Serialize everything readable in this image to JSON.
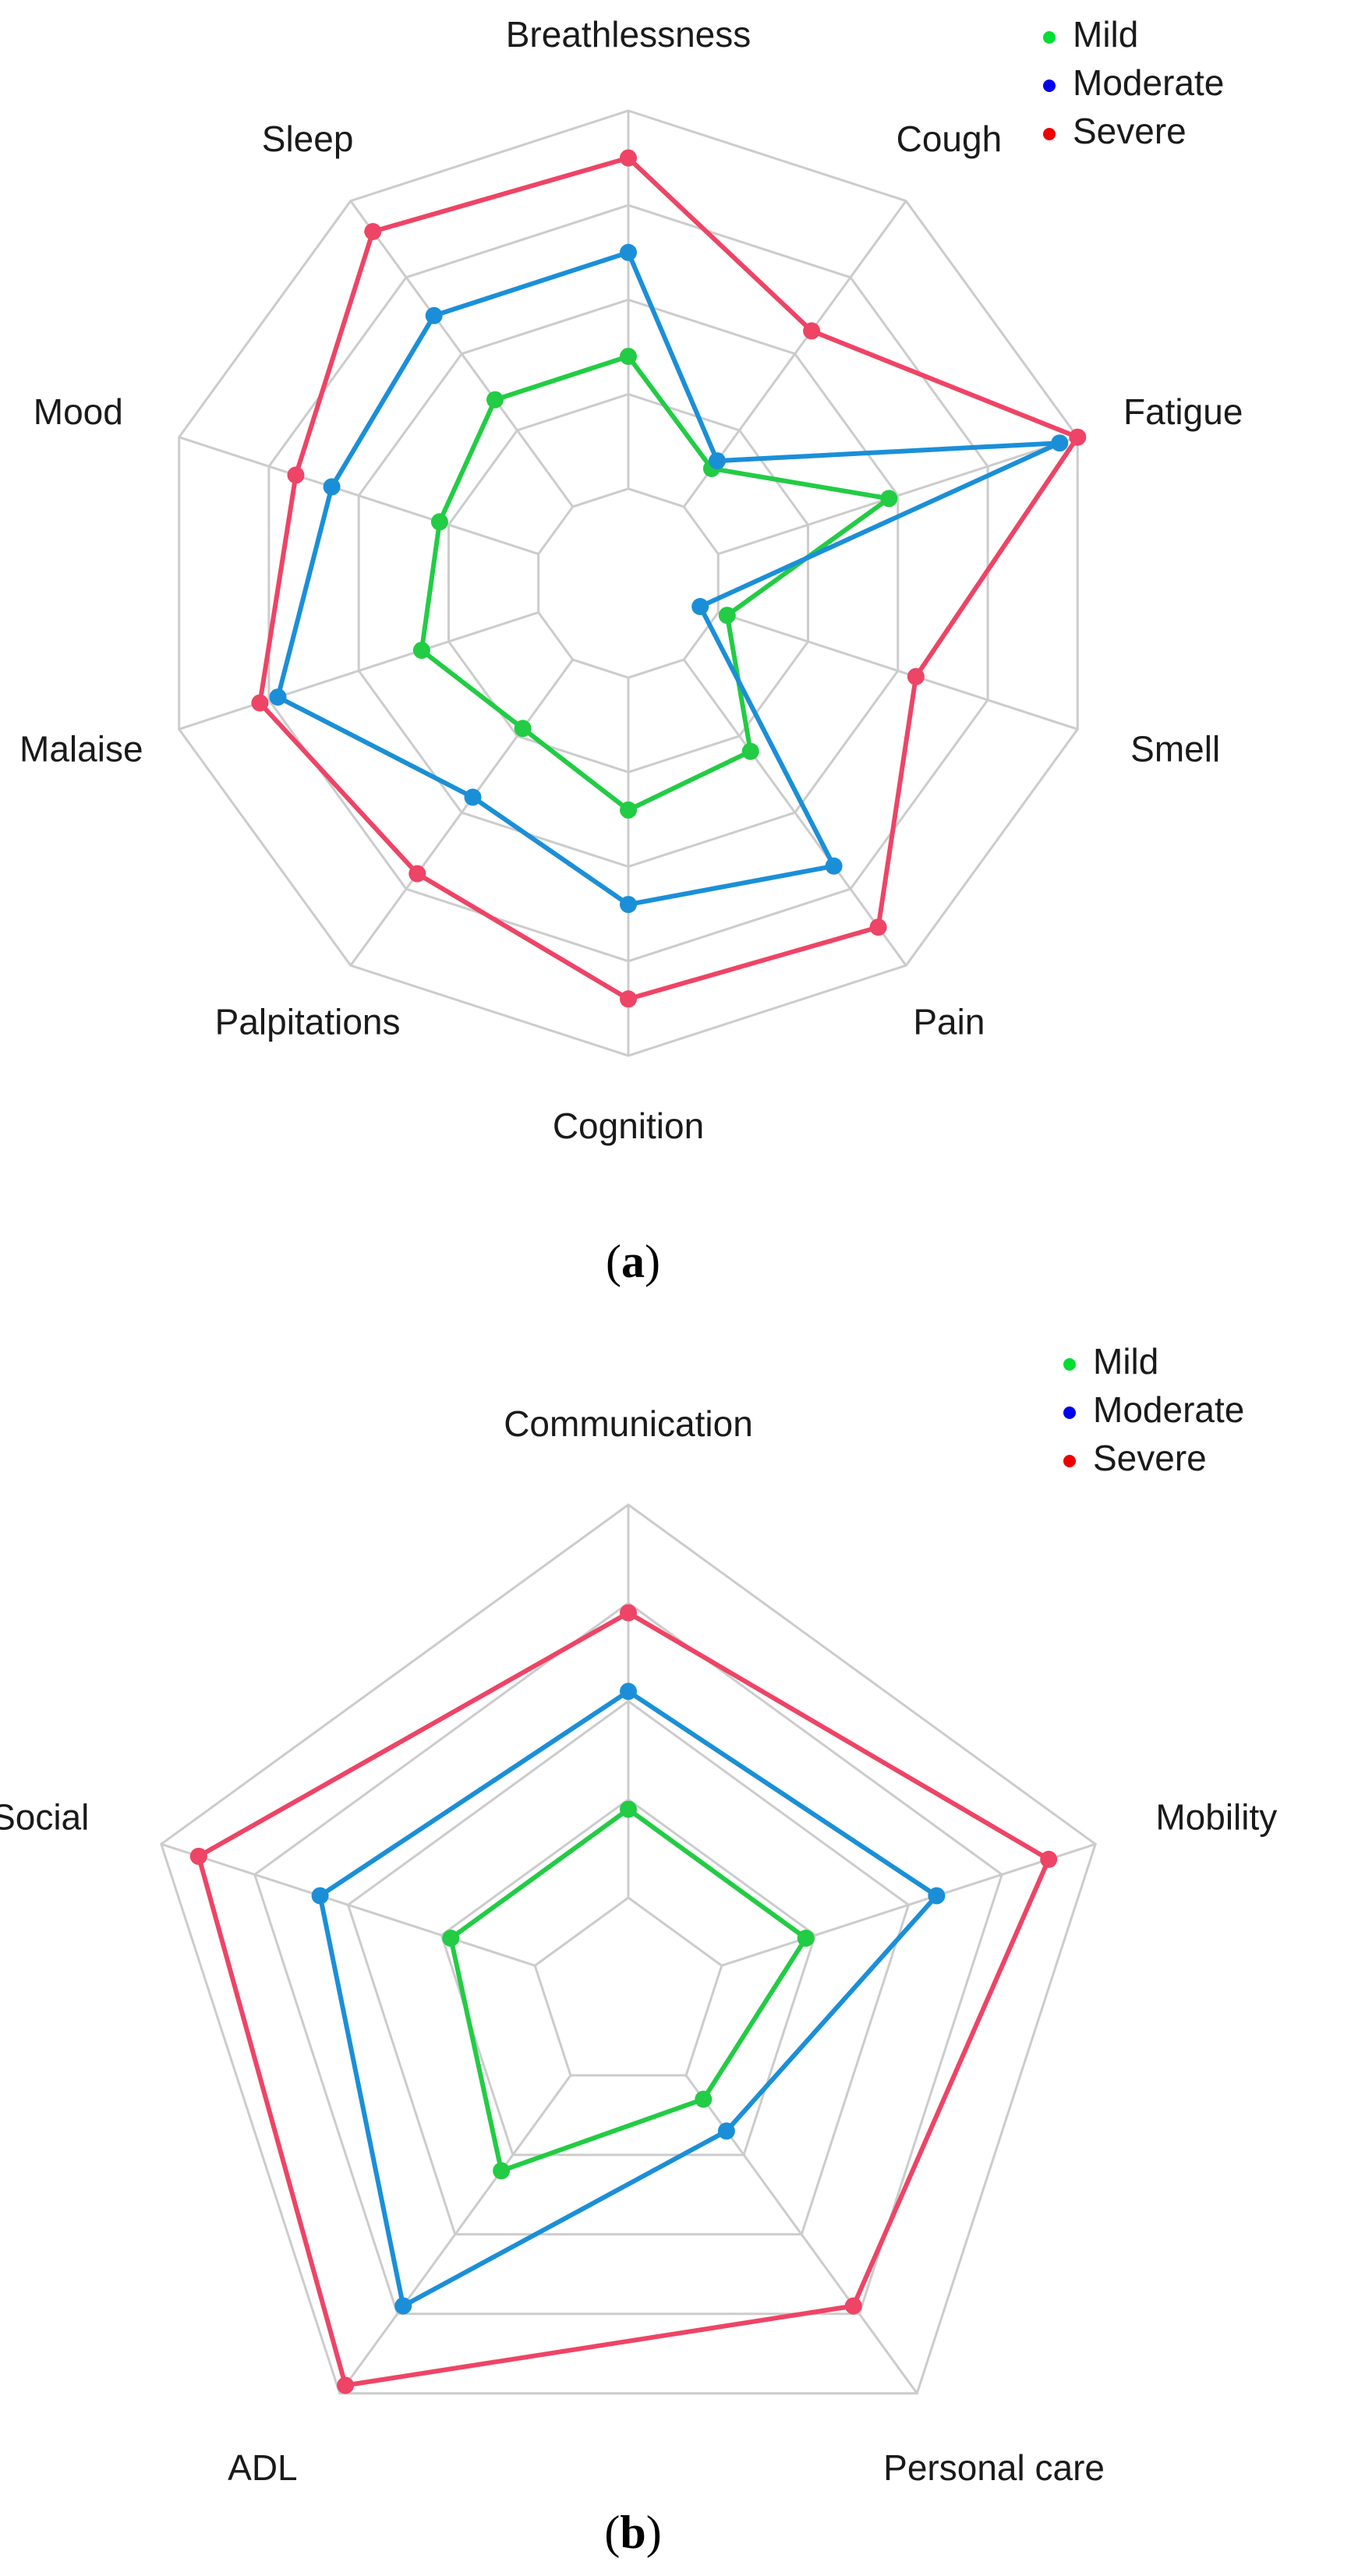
{
  "chart_data": [
    {
      "type": "radar",
      "panel_label": "a",
      "axes": [
        "Breathlessness",
        "Cough",
        "Fatigue",
        "Smell",
        "Pain",
        "Cognition",
        "Palpitations",
        "Malaise",
        "Mood",
        "Sleep"
      ],
      "rlim": [
        0,
        5
      ],
      "grid_levels": [
        1,
        2,
        3,
        4,
        5
      ],
      "grid": true,
      "legend_position": "top-right",
      "series": [
        {
          "name": "Mild",
          "legend_color": "#00dd33",
          "line_color": "#22cc44",
          "values": [
            2.4,
            1.5,
            2.9,
            1.1,
            2.2,
            2.4,
            1.9,
            2.3,
            2.1,
            2.4
          ]
        },
        {
          "name": "Moderate",
          "legend_color": "#0000ee",
          "line_color": "#1a8fd8",
          "values": [
            3.5,
            1.6,
            4.8,
            0.8,
            3.7,
            3.4,
            2.8,
            3.9,
            3.3,
            3.5
          ]
        },
        {
          "name": "Severe",
          "legend_color": "#ee0000",
          "line_color": "#ee4466",
          "values": [
            4.5,
            3.3,
            5.0,
            3.2,
            4.5,
            4.4,
            3.8,
            4.1,
            3.7,
            4.6
          ]
        }
      ]
    },
    {
      "type": "radar",
      "panel_label": "b",
      "axes": [
        "Communication",
        "Mobility",
        "Personal care",
        "ADL",
        "Social"
      ],
      "rlim": [
        0,
        5
      ],
      "grid_levels": [
        1,
        2,
        3,
        4,
        5
      ],
      "grid": true,
      "legend_position": "top-right",
      "series": [
        {
          "name": "Mild",
          "legend_color": "#00dd33",
          "line_color": "#22cc44",
          "values": [
            1.9,
            1.9,
            1.3,
            2.2,
            1.9
          ]
        },
        {
          "name": "Moderate",
          "legend_color": "#0000ee",
          "line_color": "#1a8fd8",
          "values": [
            3.1,
            3.3,
            1.7,
            3.9,
            3.3
          ]
        },
        {
          "name": "Severe",
          "legend_color": "#ee0000",
          "line_color": "#ee4466",
          "values": [
            3.9,
            4.5,
            3.9,
            4.9,
            4.6
          ]
        }
      ]
    }
  ]
}
